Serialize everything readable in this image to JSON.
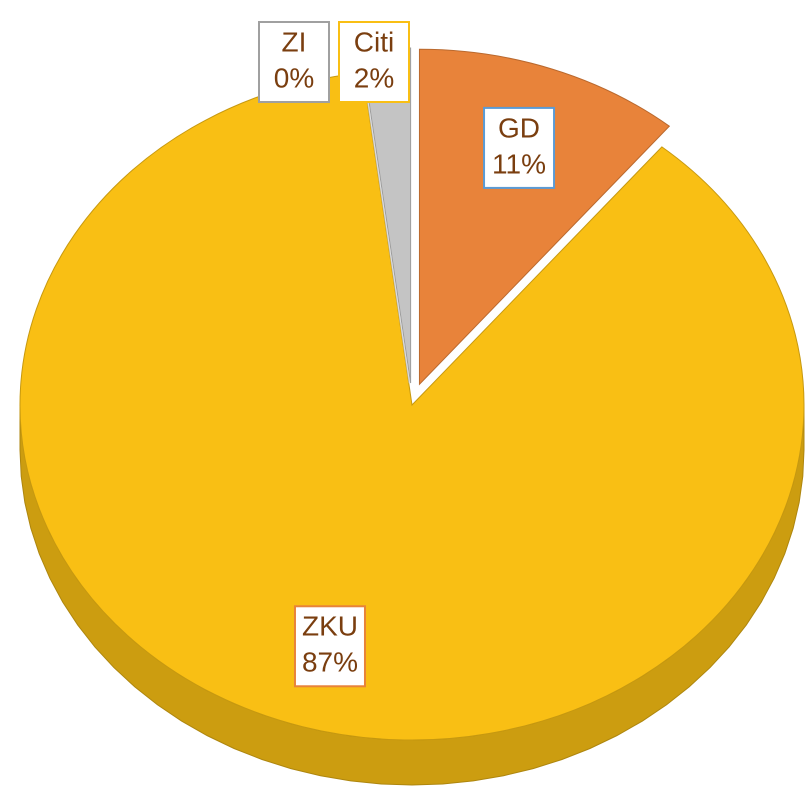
{
  "chart_data": {
    "type": "pie",
    "categories": [
      "GD",
      "ZKU",
      "ZI",
      "Citi"
    ],
    "values": [
      11,
      87,
      0,
      2
    ],
    "value_labels": [
      "11%",
      "87%",
      "0%",
      "2%"
    ],
    "colors": [
      "#e8833a",
      "#f9bf14",
      "#ffffff",
      "#c4c4c4"
    ],
    "label_borders": [
      "#5b9bd5",
      "#e8833a",
      "#a0a0a0",
      "#f9bf14"
    ]
  }
}
